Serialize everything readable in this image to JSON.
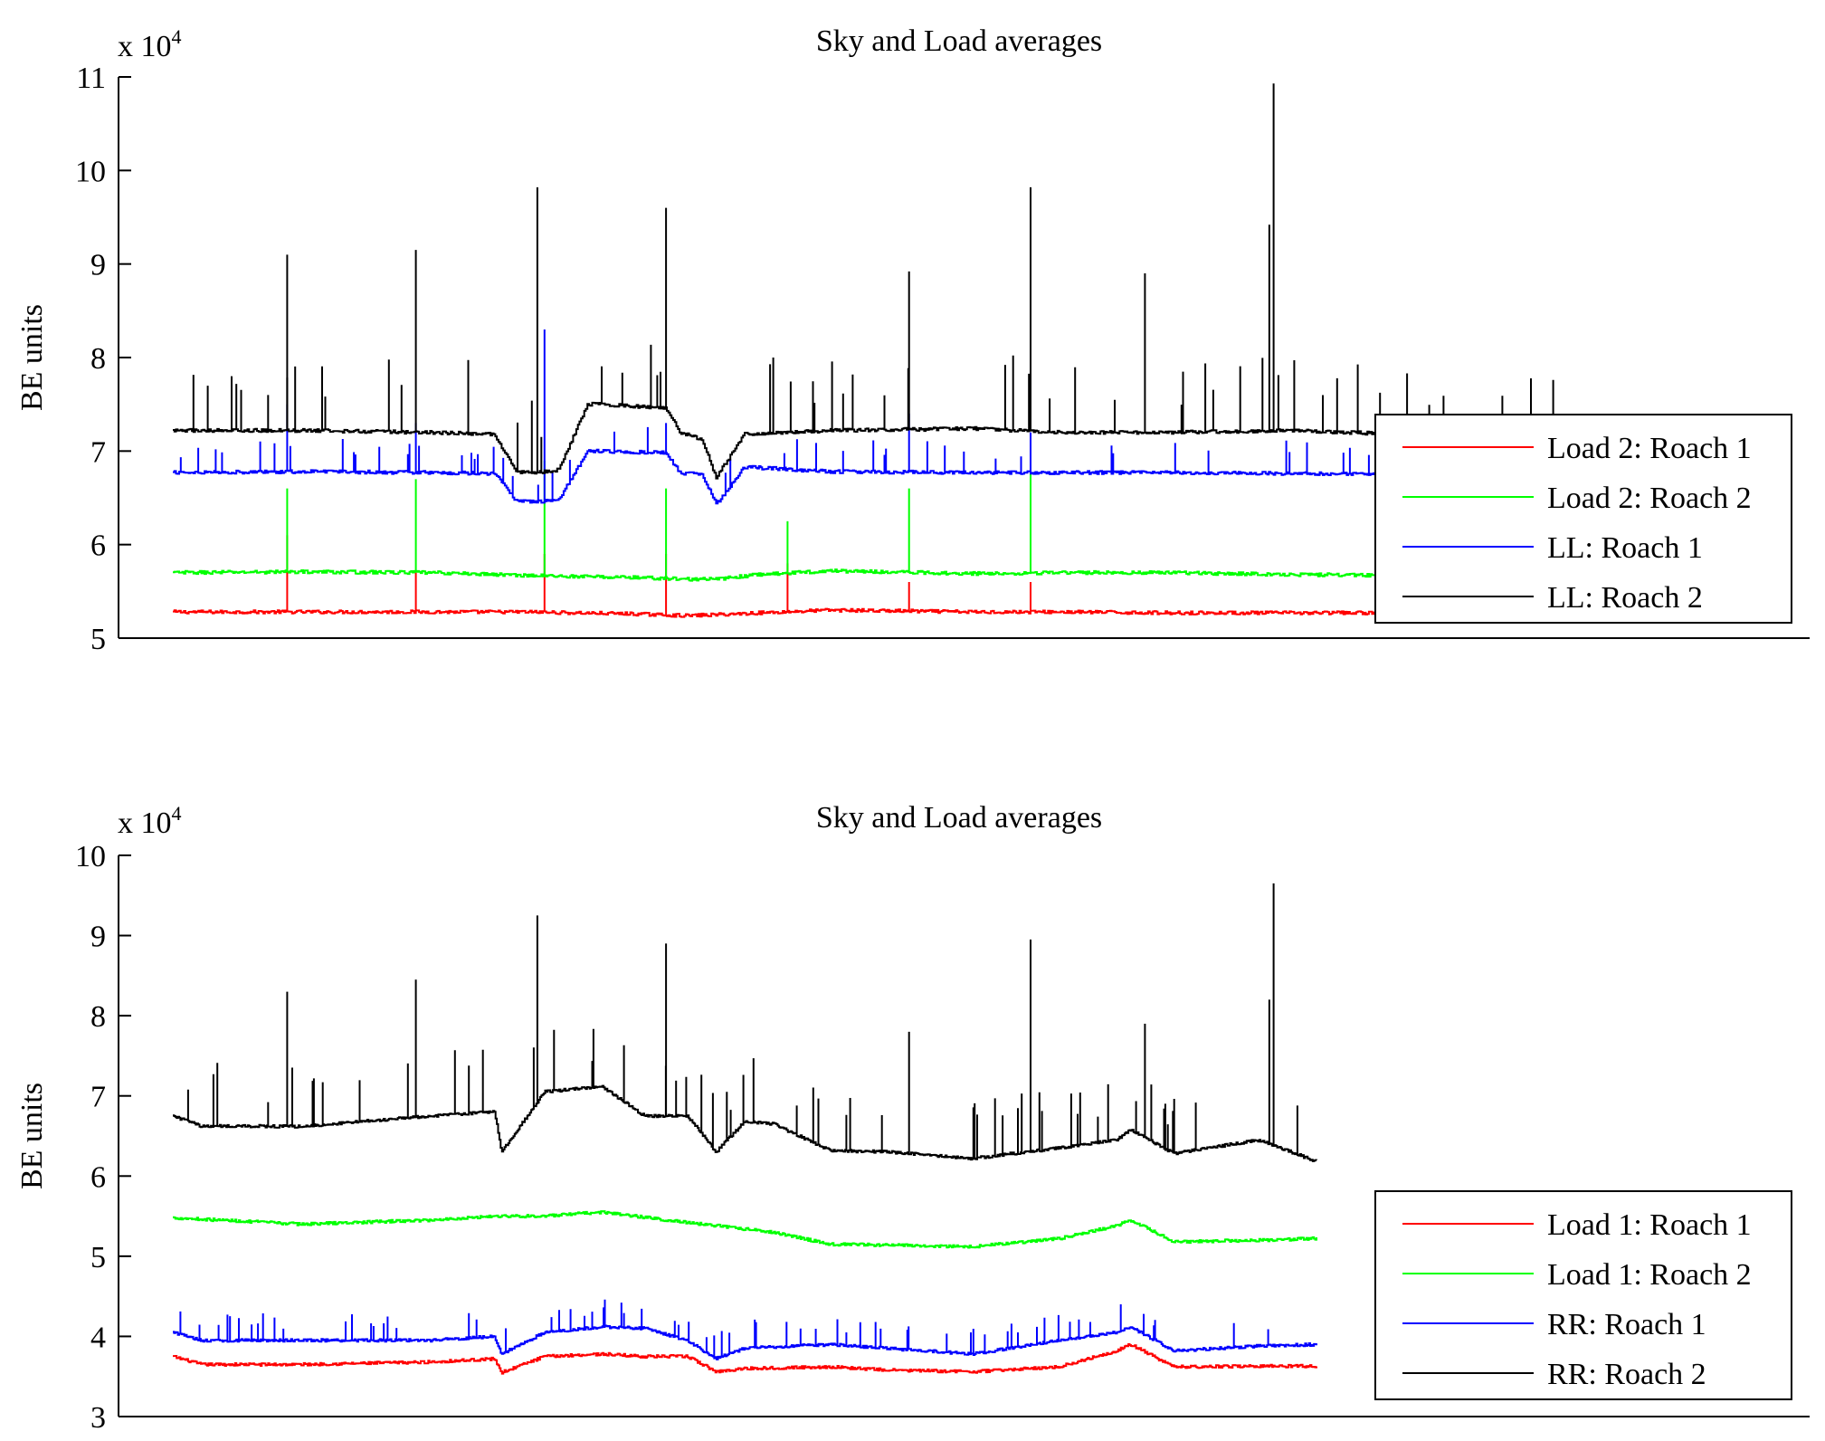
{
  "chart_data": [
    {
      "type": "line",
      "title": "Sky and Load averages",
      "ylabel": "BE units",
      "xlabel": "",
      "y_scale_multiplier_base": "x 10",
      "y_scale_multiplier_exp": "4",
      "ylim": [
        5,
        11
      ],
      "xlim": [
        0,
        1000
      ],
      "yticks": [
        "5",
        "6",
        "7",
        "8",
        "9",
        "10",
        "11"
      ],
      "grid": false,
      "legend_position": "bottom-right",
      "series": [
        {
          "name": "Load 2: Roach 1",
          "color": "#ff0000",
          "x": [
            0,
            90,
            180,
            250,
            280,
            320,
            360,
            380,
            410,
            460,
            560,
            620,
            700,
            780,
            860,
            950,
            1000
          ],
          "values": [
            5.28,
            5.28,
            5.28,
            5.28,
            5.27,
            5.26,
            5.24,
            5.25,
            5.27,
            5.3,
            5.28,
            5.28,
            5.27,
            5.27,
            5.27,
            5.27,
            5.27
          ],
          "spikes": [
            {
              "x": 80,
              "peak": 6.1
            },
            {
              "x": 170,
              "peak": 5.7
            },
            {
              "x": 260,
              "peak": 5.9
            },
            {
              "x": 345,
              "peak": 5.9
            },
            {
              "x": 430,
              "peak": 5.8
            },
            {
              "x": 515,
              "peak": 5.6
            },
            {
              "x": 600,
              "peak": 5.6
            }
          ]
        },
        {
          "name": "Load 2: Roach 2",
          "color": "#00ff00",
          "x": [
            0,
            90,
            180,
            250,
            280,
            320,
            360,
            380,
            410,
            460,
            560,
            620,
            700,
            780,
            860,
            950,
            1000
          ],
          "values": [
            5.7,
            5.71,
            5.7,
            5.67,
            5.66,
            5.65,
            5.63,
            5.63,
            5.68,
            5.72,
            5.69,
            5.7,
            5.7,
            5.68,
            5.67,
            5.67,
            5.67
          ],
          "spikes": [
            {
              "x": 80,
              "peak": 6.6
            },
            {
              "x": 170,
              "peak": 6.7
            },
            {
              "x": 260,
              "peak": 6.9
            },
            {
              "x": 345,
              "peak": 6.6
            },
            {
              "x": 430,
              "peak": 6.25
            },
            {
              "x": 515,
              "peak": 6.6
            },
            {
              "x": 600,
              "peak": 6.95
            }
          ]
        },
        {
          "name": "LL: Roach 1",
          "color": "#0000ff",
          "x": [
            0,
            90,
            180,
            225,
            240,
            255,
            270,
            290,
            300,
            320,
            345,
            355,
            370,
            380,
            400,
            460,
            560,
            620,
            700,
            780,
            860,
            950,
            1000
          ],
          "values": [
            6.77,
            6.78,
            6.77,
            6.76,
            6.47,
            6.46,
            6.48,
            7.0,
            7.0,
            6.99,
            6.98,
            6.76,
            6.76,
            6.43,
            6.83,
            6.78,
            6.77,
            6.77,
            6.77,
            6.76,
            6.75,
            6.72,
            6.72
          ],
          "spikes": [
            {
              "x": 80,
              "peak": 7.5
            },
            {
              "x": 170,
              "peak": 7.3
            },
            {
              "x": 260,
              "peak": 8.3
            },
            {
              "x": 345,
              "peak": 7.3
            },
            {
              "x": 515,
              "peak": 7.4
            },
            {
              "x": 600,
              "peak": 7.2
            }
          ]
        },
        {
          "name": "LL: Roach 2",
          "color": "#000000",
          "x": [
            0,
            90,
            180,
            225,
            240,
            255,
            270,
            290,
            300,
            320,
            345,
            355,
            370,
            380,
            400,
            460,
            560,
            620,
            700,
            780,
            860,
            950,
            1000
          ],
          "values": [
            7.22,
            7.22,
            7.2,
            7.18,
            6.78,
            6.77,
            6.8,
            7.5,
            7.5,
            7.48,
            7.46,
            7.2,
            7.12,
            6.72,
            7.18,
            7.22,
            7.24,
            7.2,
            7.2,
            7.22,
            7.18,
            7.17,
            7.17
          ],
          "spikes": [
            {
              "x": 80,
              "peak": 9.1
            },
            {
              "x": 170,
              "peak": 9.15
            },
            {
              "x": 255,
              "peak": 9.82
            },
            {
              "x": 345,
              "peak": 9.6
            },
            {
              "x": 600,
              "peak": 9.82
            },
            {
              "x": 515,
              "peak": 8.92
            },
            {
              "x": 680,
              "peak": 8.9
            },
            {
              "x": 770,
              "peak": 10.93
            },
            {
              "x": 767,
              "peak": 9.42
            },
            {
              "x": 420,
              "peak": 8.0
            }
          ]
        }
      ]
    },
    {
      "type": "line",
      "title": "Sky and Load averages",
      "ylabel": "BE units",
      "xlabel": "",
      "y_scale_multiplier_base": "x 10",
      "y_scale_multiplier_exp": "4",
      "ylim": [
        3,
        10
      ],
      "xlim": [
        0,
        1000
      ],
      "yticks": [
        "3",
        "4",
        "5",
        "6",
        "7",
        "8",
        "9",
        "10"
      ],
      "grid": false,
      "legend_position": "bottom-right",
      "series": [
        {
          "name": "Load 1: Roach 1",
          "color": "#ff0000",
          "x": [
            0,
            20,
            90,
            180,
            225,
            230,
            260,
            300,
            330,
            360,
            380,
            400,
            460,
            500,
            560,
            620,
            660,
            670,
            700,
            760,
            800
          ],
          "values": [
            3.75,
            3.65,
            3.65,
            3.68,
            3.72,
            3.55,
            3.75,
            3.78,
            3.75,
            3.75,
            3.56,
            3.6,
            3.62,
            3.58,
            3.56,
            3.62,
            3.82,
            3.9,
            3.62,
            3.63,
            3.63
          ]
        },
        {
          "name": "Load 1: Roach 2",
          "color": "#00ff00",
          "x": [
            0,
            90,
            180,
            225,
            260,
            300,
            360,
            420,
            460,
            560,
            620,
            660,
            670,
            700,
            760,
            800
          ],
          "values": [
            5.48,
            5.4,
            5.45,
            5.5,
            5.5,
            5.55,
            5.42,
            5.3,
            5.15,
            5.12,
            5.22,
            5.38,
            5.45,
            5.18,
            5.2,
            5.22
          ]
        },
        {
          "name": "RR: Roach 1",
          "color": "#0000ff",
          "x": [
            0,
            20,
            90,
            180,
            225,
            230,
            260,
            300,
            330,
            360,
            380,
            400,
            460,
            500,
            560,
            620,
            660,
            670,
            700,
            760,
            800
          ],
          "values": [
            4.05,
            3.95,
            3.95,
            3.95,
            4.0,
            3.78,
            4.05,
            4.12,
            4.1,
            3.95,
            3.72,
            3.85,
            3.9,
            3.85,
            3.78,
            3.95,
            4.05,
            4.12,
            3.82,
            3.88,
            3.9
          ]
        },
        {
          "name": "RR: Roach 2",
          "color": "#000000",
          "x": [
            0,
            20,
            90,
            180,
            225,
            230,
            260,
            300,
            330,
            360,
            380,
            400,
            420,
            460,
            500,
            560,
            620,
            660,
            670,
            700,
            760,
            800
          ],
          "values": [
            6.75,
            6.62,
            6.62,
            6.75,
            6.8,
            6.3,
            7.05,
            7.12,
            6.75,
            6.75,
            6.3,
            6.68,
            6.65,
            6.32,
            6.3,
            6.22,
            6.35,
            6.45,
            6.58,
            6.28,
            6.45,
            6.18
          ],
          "spikes": [
            {
              "x": 80,
              "peak": 8.3
            },
            {
              "x": 170,
              "peak": 8.45
            },
            {
              "x": 255,
              "peak": 9.25
            },
            {
              "x": 345,
              "peak": 8.9
            },
            {
              "x": 515,
              "peak": 7.8
            },
            {
              "x": 600,
              "peak": 8.95
            },
            {
              "x": 680,
              "peak": 7.9
            },
            {
              "x": 770,
              "peak": 9.65
            },
            {
              "x": 767,
              "peak": 8.2
            }
          ]
        }
      ]
    }
  ]
}
